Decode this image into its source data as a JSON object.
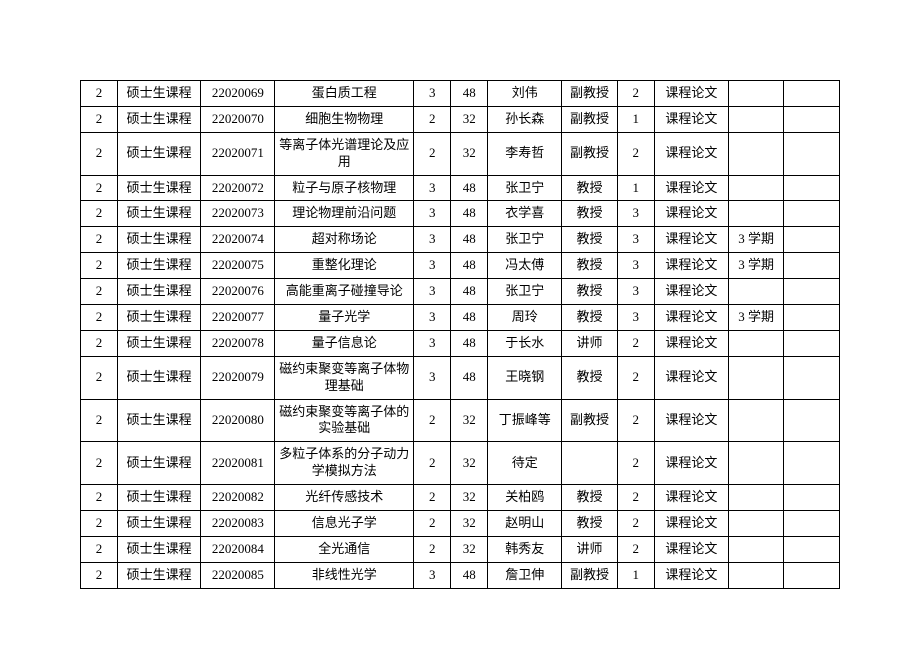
{
  "course_table": {
    "col_widths": [
      "4%",
      "9%",
      "8%",
      "15%",
      "4%",
      "4%",
      "8%",
      "6%",
      "4%",
      "8%",
      "6%",
      "6%"
    ],
    "rows": [
      [
        "2",
        "硕士生课程",
        "22020069",
        "蛋白质工程",
        "3",
        "48",
        "刘伟",
        "副教授",
        "2",
        "课程论文",
        "",
        ""
      ],
      [
        "2",
        "硕士生课程",
        "22020070",
        "细胞生物物理",
        "2",
        "32",
        "孙长森",
        "副教授",
        "1",
        "课程论文",
        "",
        ""
      ],
      [
        "2",
        "硕士生课程",
        "22020071",
        "等离子体光谱理论及应用",
        "2",
        "32",
        "李寿哲",
        "副教授",
        "2",
        "课程论文",
        "",
        ""
      ],
      [
        "2",
        "硕士生课程",
        "22020072",
        "粒子与原子核物理",
        "3",
        "48",
        "张卫宁",
        "教授",
        "1",
        "课程论文",
        "",
        ""
      ],
      [
        "2",
        "硕士生课程",
        "22020073",
        "理论物理前沿问题",
        "3",
        "48",
        "衣学喜",
        "教授",
        "3",
        "课程论文",
        "",
        ""
      ],
      [
        "2",
        "硕士生课程",
        "22020074",
        "超对称场论",
        "3",
        "48",
        "张卫宁",
        "教授",
        "3",
        "课程论文",
        "3 学期",
        ""
      ],
      [
        "2",
        "硕士生课程",
        "22020075",
        "重整化理论",
        "3",
        "48",
        "冯太傅",
        "教授",
        "3",
        "课程论文",
        "3 学期",
        ""
      ],
      [
        "2",
        "硕士生课程",
        "22020076",
        "高能重离子碰撞导论",
        "3",
        "48",
        "张卫宁",
        "教授",
        "3",
        "课程论文",
        "",
        ""
      ],
      [
        "2",
        "硕士生课程",
        "22020077",
        "量子光学",
        "3",
        "48",
        "周玲",
        "教授",
        "3",
        "课程论文",
        "3 学期",
        ""
      ],
      [
        "2",
        "硕士生课程",
        "22020078",
        "量子信息论",
        "3",
        "48",
        "于长水",
        "讲师",
        "2",
        "课程论文",
        "",
        ""
      ],
      [
        "2",
        "硕士生课程",
        "22020079",
        "磁约束聚变等离子体物理基础",
        "3",
        "48",
        "王晓钢",
        "教授",
        "2",
        "课程论文",
        "",
        ""
      ],
      [
        "2",
        "硕士生课程",
        "22020080",
        "磁约束聚变等离子体的实验基础",
        "2",
        "32",
        "丁振峰等",
        "副教授",
        "2",
        "课程论文",
        "",
        ""
      ],
      [
        "2",
        "硕士生课程",
        "22020081",
        "多粒子体系的分子动力学模拟方法",
        "2",
        "32",
        "待定",
        "",
        "2",
        "课程论文",
        "",
        ""
      ],
      [
        "2",
        "硕士生课程",
        "22020082",
        "光纤传感技术",
        "2",
        "32",
        "关柏鸥",
        "教授",
        "2",
        "课程论文",
        "",
        ""
      ],
      [
        "2",
        "硕士生课程",
        "22020083",
        "信息光子学",
        "2",
        "32",
        "赵明山",
        "教授",
        "2",
        "课程论文",
        "",
        ""
      ],
      [
        "2",
        "硕士生课程",
        "22020084",
        "全光通信",
        "2",
        "32",
        "韩秀友",
        "讲师",
        "2",
        "课程论文",
        "",
        ""
      ],
      [
        "2",
        "硕士生课程",
        "22020085",
        "非线性光学",
        "3",
        "48",
        "詹卫伸",
        "副教授",
        "1",
        "课程论文",
        "",
        ""
      ]
    ]
  }
}
